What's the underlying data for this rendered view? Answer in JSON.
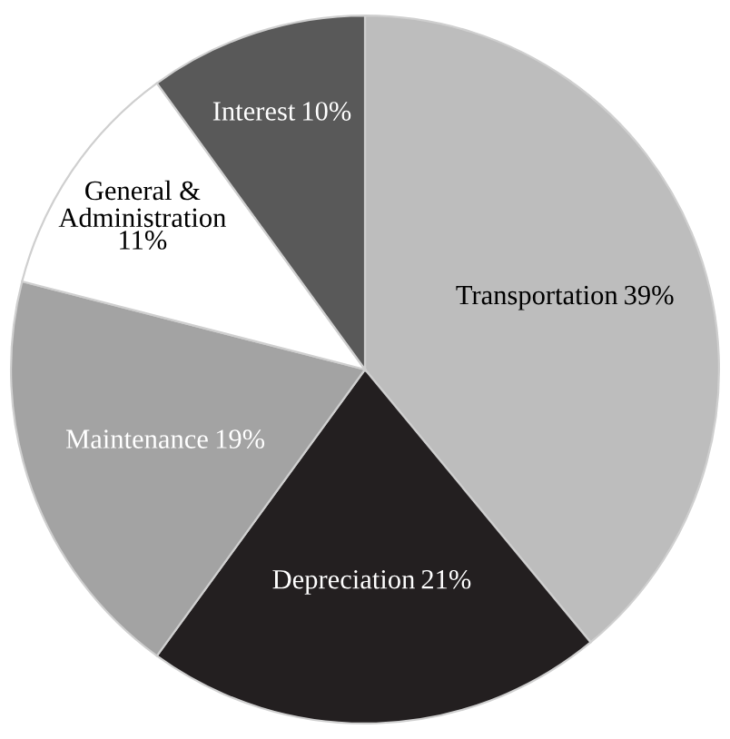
{
  "chart_data": {
    "type": "pie",
    "categories": [
      "Transportation",
      "Depreciation",
      "Maintenance",
      "General &\nAdministration",
      "Interest"
    ],
    "values": [
      39,
      21,
      19,
      11,
      10
    ],
    "colors": [
      "#bdbdbd",
      "#231f20",
      "#a3a3a3",
      "#ffffff",
      "#595959"
    ],
    "value_labels": [
      "39%",
      "21%",
      "19%",
      "11%",
      "10%"
    ]
  }
}
